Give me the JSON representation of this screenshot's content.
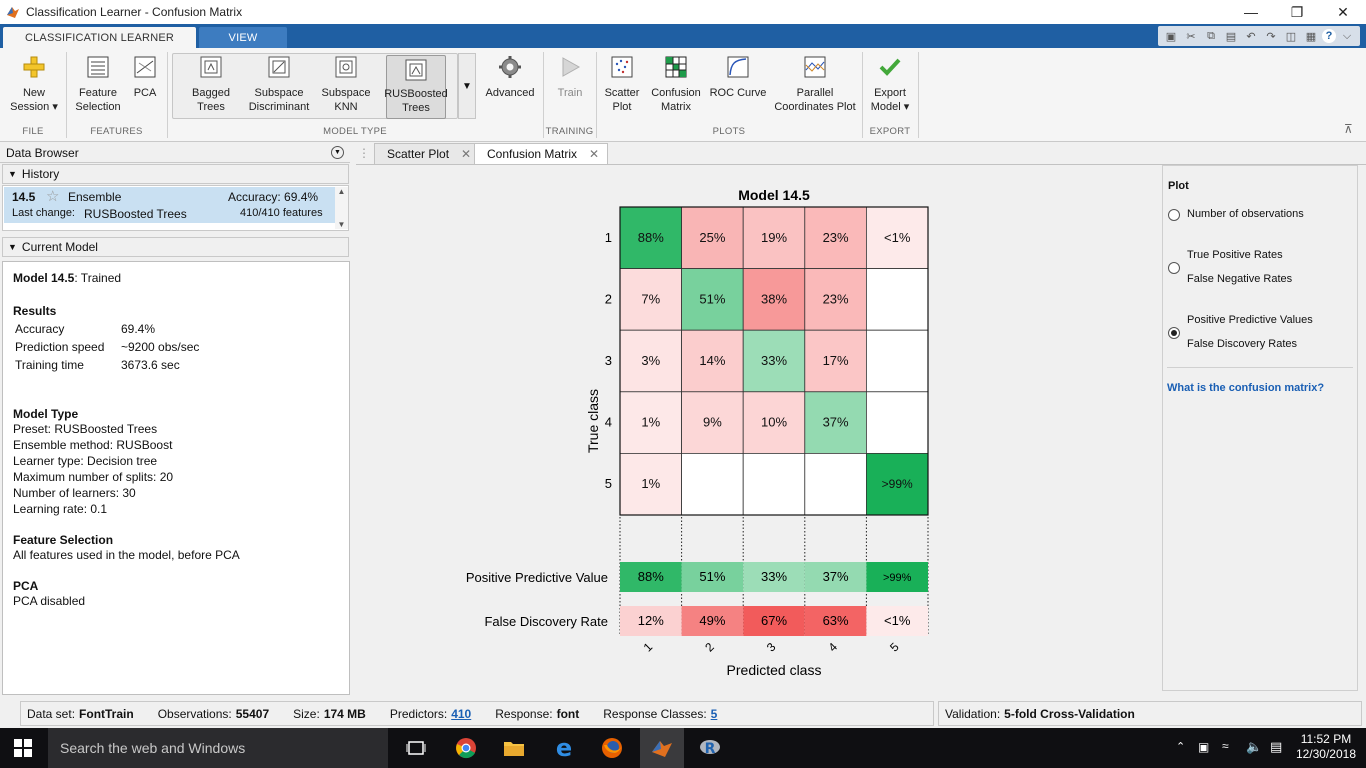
{
  "window": {
    "title": "Classification Learner - Confusion Matrix"
  },
  "ribbon_tabs": [
    "CLASSIFICATION LEARNER",
    "VIEW"
  ],
  "ribbon": {
    "new_session": [
      "New",
      "Session"
    ],
    "feature_selection": [
      "Feature",
      "Selection"
    ],
    "pca": "PCA",
    "bagged": [
      "Bagged",
      "Trees"
    ],
    "subspace_disc": [
      "Subspace",
      "Discriminant"
    ],
    "subspace_knn": [
      "Subspace",
      "KNN"
    ],
    "rusboosted": [
      "RUSBoosted",
      "Trees"
    ],
    "advanced": "Advanced",
    "train": "Train",
    "scatter": [
      "Scatter",
      "Plot"
    ],
    "confusion": [
      "Confusion",
      "Matrix"
    ],
    "roc": "ROC Curve",
    "parallel": [
      "Parallel",
      "Coordinates Plot"
    ],
    "export": [
      "Export",
      "Model"
    ],
    "sections": [
      "FILE",
      "FEATURES",
      "MODEL TYPE",
      "TRAINING",
      "PLOTS",
      "EXPORT"
    ]
  },
  "left": {
    "data_browser": "Data Browser",
    "history_label": "History",
    "history_item": {
      "id": "14.5",
      "type": "Ensemble",
      "accuracy": "Accuracy:  69.4%",
      "last_change_label": "Last change:",
      "last_change": "RUSBoosted Trees",
      "features": "410/410 features"
    },
    "current_model_label": "Current Model",
    "current": {
      "title_bold": "Model 14.5",
      "title_rest": ": Trained",
      "results_h": "Results",
      "results": [
        {
          "k": "Accuracy",
          "v": "69.4%"
        },
        {
          "k": "Prediction speed",
          "v": "~9200 obs/sec"
        },
        {
          "k": "Training time",
          "v": "3673.6 sec"
        }
      ],
      "model_type_h": "Model Type",
      "model_type": [
        "Preset: RUSBoosted Trees",
        "Ensemble method: RUSBoost",
        "Learner type: Decision tree",
        "Maximum number of splits: 20",
        "Number of learners: 30",
        "Learning rate: 0.1"
      ],
      "feature_sel_h": "Feature Selection",
      "feature_sel": "All features used in the model, before PCA",
      "pca_h": "PCA",
      "pca": "PCA disabled"
    }
  },
  "doc_tabs": [
    "Scatter Plot",
    "Confusion Matrix"
  ],
  "plot_options": {
    "title": "Plot",
    "opt1": "Number of observations",
    "opt2a": "True Positive Rates",
    "opt2b": "False Negative Rates",
    "opt3a": "Positive Predictive Values",
    "opt3b": "False Discovery Rates",
    "link": "What is the confusion matrix?"
  },
  "chart_data": {
    "type": "heatmap",
    "title": "Model 14.5",
    "xlabel": "Predicted class",
    "ylabel": "True class",
    "classes": [
      "1",
      "2",
      "3",
      "4",
      "5"
    ],
    "cells": [
      [
        "88%",
        "25%",
        "19%",
        "23%",
        "<1%"
      ],
      [
        "7%",
        "51%",
        "38%",
        "23%",
        ""
      ],
      [
        "3%",
        "14%",
        "33%",
        "17%",
        ""
      ],
      [
        "1%",
        "9%",
        "10%",
        "37%",
        ""
      ],
      [
        "1%",
        "",
        "",
        "",
        ">99%"
      ]
    ],
    "values": [
      [
        88,
        25,
        19,
        23,
        0.5
      ],
      [
        7,
        51,
        38,
        23,
        0
      ],
      [
        3,
        14,
        33,
        17,
        0
      ],
      [
        1,
        9,
        10,
        37,
        0
      ],
      [
        1,
        0,
        0,
        0,
        99.5
      ]
    ],
    "ppv_label": "Positive Predictive Value",
    "ppv": [
      "88%",
      "51%",
      "33%",
      "37%",
      ">99%"
    ],
    "ppv_values": [
      88,
      51,
      33,
      37,
      99.5
    ],
    "fdr_label": "False Discovery Rate",
    "fdr": [
      "12%",
      "49%",
      "67%",
      "63%",
      "<1%"
    ],
    "fdr_values": [
      12,
      49,
      67,
      63,
      0.5
    ]
  },
  "status": {
    "dataset_label": "Data set:",
    "dataset": "FontTrain",
    "obs_label": "Observations:",
    "obs": "55407",
    "size_label": "Size:",
    "size": "174 MB",
    "pred_label": "Predictors:",
    "pred": "410",
    "resp_label": "Response:",
    "resp": "font",
    "rc_label": "Response Classes:",
    "rc": "5",
    "valid_label": "Validation:",
    "valid": "5-fold Cross-Validation"
  },
  "taskbar": {
    "search": "Search the web and Windows",
    "time": "11:52 PM",
    "date": "12/30/2018"
  }
}
